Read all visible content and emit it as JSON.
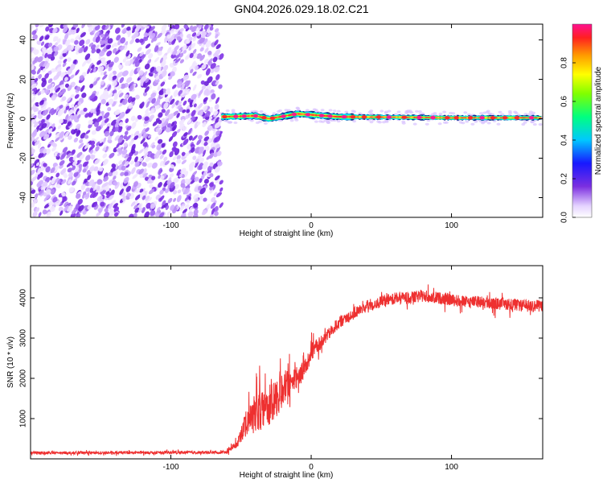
{
  "title": "GN04.2026.029.18.02.C21",
  "chart_data": [
    {
      "type": "heatmap",
      "title": "GN04.2026.029.18.02.C21",
      "xlabel": "Height of straight line (km)",
      "ylabel": "Frequency (Hz)",
      "xlim": [
        -200,
        165
      ],
      "ylim": [
        -50,
        48
      ],
      "x_ticks": [
        -100,
        0,
        100
      ],
      "x_tick_labels": [
        "-100",
        "0",
        "100"
      ],
      "y_ticks": [
        -40,
        -20,
        0,
        20,
        40
      ],
      "y_tick_labels": [
        "-40",
        "-20",
        "0",
        "20",
        "40"
      ],
      "noise_region_x": [
        -200,
        -64
      ],
      "signal_band": {
        "x_start": -64,
        "x_end": 165,
        "center_freq_hz": [
          [
            -64,
            1
          ],
          [
            -40,
            1.5
          ],
          [
            -30,
            0
          ],
          [
            -22,
            1
          ],
          [
            -10,
            2.5
          ],
          [
            0,
            2
          ],
          [
            20,
            1
          ],
          [
            60,
            0.8
          ],
          [
            100,
            0.5
          ],
          [
            165,
            0.5
          ]
        ],
        "half_width_hz": 1.2
      },
      "colorbar": {
        "label": "Normalized spectral amplitude",
        "range": [
          0,
          1
        ],
        "ticks": [
          0,
          0.2,
          0.4,
          0.6,
          0.8
        ],
        "tick_labels": [
          "0.0",
          "0.2",
          "0.4",
          "0.6",
          "0.8"
        ]
      }
    },
    {
      "type": "line",
      "xlabel": "Height of straight line (km)",
      "ylabel": "SNR (10 * v/v)",
      "xlim": [
        -200,
        165
      ],
      "ylim": [
        0,
        4800
      ],
      "x_ticks": [
        -100,
        0,
        100
      ],
      "x_tick_labels": [
        "-100",
        "0",
        "100"
      ],
      "y_ticks": [
        1000,
        2000,
        3000,
        4000
      ],
      "y_tick_labels": [
        "1000",
        "2000",
        "3000",
        "4000"
      ],
      "series": [
        {
          "name": "SNR",
          "color": "#ee3030",
          "x": [
            -200,
            -150,
            -100,
            -60,
            -52,
            -48,
            -44,
            -40,
            -35,
            -30,
            -25,
            -20,
            -15,
            -10,
            -5,
            0,
            5,
            10,
            15,
            20,
            30,
            40,
            50,
            60,
            70,
            80,
            90,
            100,
            110,
            120,
            130,
            140,
            150,
            165
          ],
          "values": [
            150,
            150,
            160,
            160,
            400,
            800,
            900,
            1100,
            1200,
            1300,
            1500,
            1700,
            1800,
            2000,
            2200,
            2600,
            2800,
            3000,
            3200,
            3400,
            3600,
            3800,
            3900,
            4000,
            4000,
            4050,
            4000,
            3950,
            3900,
            3900,
            3850,
            3850,
            3800,
            3800
          ],
          "noise_amplitude": [
            60,
            60,
            60,
            60,
            150,
            500,
            600,
            700,
            800,
            800,
            800,
            700,
            600,
            500,
            400,
            300,
            300,
            250,
            250,
            250,
            250,
            250,
            250,
            250,
            250,
            250,
            250,
            250,
            250,
            250,
            250,
            250,
            250,
            250
          ]
        }
      ]
    }
  ]
}
